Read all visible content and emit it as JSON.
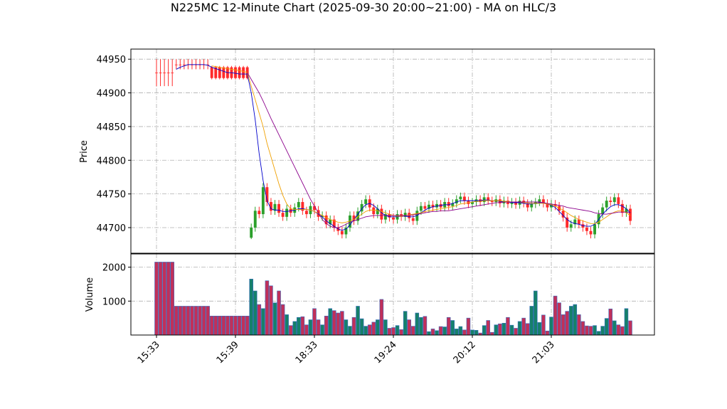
{
  "chart_data": {
    "type": "candlestick",
    "title": "N225MC 12-Minute Chart (2025-09-30 20:00~21:00) - MA on HLC/3",
    "ylabel": "Price",
    "volume_label": "Volume",
    "categories": [
      "15:33",
      null,
      null,
      null,
      null,
      null,
      null,
      null,
      null,
      null,
      null,
      null,
      null,
      null,
      null,
      null,
      null,
      null,
      null,
      null,
      "15:39",
      null,
      null,
      null,
      null,
      null,
      null,
      null,
      null,
      null,
      null,
      null,
      null,
      null,
      null,
      null,
      null,
      null,
      null,
      null,
      "18:33",
      null,
      null,
      null,
      null,
      null,
      null,
      null,
      null,
      null,
      null,
      null,
      null,
      null,
      null,
      null,
      null,
      null,
      null,
      null,
      "19:24",
      null,
      null,
      null,
      null,
      null,
      null,
      null,
      null,
      null,
      null,
      null,
      null,
      null,
      null,
      null,
      null,
      null,
      null,
      null,
      "20:12",
      null,
      null,
      null,
      null,
      null,
      null,
      null,
      null,
      null,
      null,
      null,
      null,
      null,
      null,
      null,
      null,
      null,
      null,
      null,
      "21:03",
      null,
      null,
      null,
      null,
      null,
      null,
      null,
      null,
      null,
      null,
      null,
      null,
      null,
      null,
      null,
      null,
      null,
      null,
      null,
      null
    ],
    "open": [
      44930,
      44930,
      44930,
      44930,
      44930,
      44942,
      44942,
      44942,
      44942,
      44942,
      44942,
      44942,
      44942,
      44942,
      44938,
      44938,
      44938,
      44938,
      44938,
      44938,
      44938,
      44938,
      44938,
      44938,
      44685,
      44700,
      44725,
      44720,
      44760,
      44738,
      44725,
      44735,
      44722,
      44716,
      44728,
      44722,
      44730,
      44738,
      44725,
      44720,
      44732,
      44726,
      44716,
      44718,
      44705,
      44712,
      44700,
      44695,
      44690,
      44700,
      44718,
      44710,
      44724,
      44735,
      44742,
      44730,
      44720,
      44728,
      44712,
      44720,
      44715,
      44712,
      44720,
      44716,
      44722,
      44714,
      44710,
      44725,
      44732,
      44728,
      44734,
      44730,
      44735,
      44730,
      44738,
      44732,
      44736,
      44742,
      44746,
      44740,
      44735,
      44738,
      44742,
      44738,
      44745,
      44740,
      44738,
      44742,
      44736,
      44740,
      44735,
      44738,
      44734,
      44740,
      44736,
      44730,
      44735,
      44738,
      44742,
      44736,
      44730,
      44735,
      44732,
      44725,
      44715,
      44700,
      44705,
      44712,
      44705,
      44700,
      44695,
      44690,
      44705,
      44720,
      44730,
      44740,
      44738,
      44745,
      44735,
      44722,
      44728
    ],
    "high": [
      44950,
      44950,
      44950,
      44950,
      44950,
      44950,
      44950,
      44950,
      44950,
      44950,
      44950,
      44950,
      44950,
      44950,
      44940,
      44940,
      44940,
      44940,
      44940,
      44940,
      44940,
      44940,
      44940,
      44940,
      44706,
      44731,
      44731,
      44766,
      44766,
      44744,
      44741,
      44741,
      44728,
      44734,
      44734,
      44736,
      44744,
      44744,
      44731,
      44738,
      44738,
      44732,
      44724,
      44724,
      44718,
      44718,
      44706,
      44701,
      44706,
      44724,
      44724,
      44730,
      44741,
      44748,
      44748,
      44736,
      44734,
      44734,
      44726,
      44726,
      44721,
      44726,
      44726,
      44728,
      44728,
      44720,
      44731,
      44738,
      44738,
      44740,
      44740,
      44741,
      44741,
      44744,
      44744,
      44742,
      44748,
      44752,
      44752,
      44746,
      44744,
      44748,
      44748,
      44751,
      44751,
      44746,
      44748,
      44748,
      44746,
      44746,
      44744,
      44744,
      44746,
      44746,
      44742,
      44741,
      44744,
      44748,
      44748,
      44742,
      44741,
      44741,
      44738,
      44731,
      44721,
      44711,
      44718,
      44718,
      44711,
      44706,
      44701,
      44711,
      44726,
      44736,
      44746,
      44746,
      44751,
      44751,
      44741,
      44734,
      44734
    ],
    "low": [
      44910,
      44910,
      44910,
      44910,
      44910,
      44935,
      44935,
      44935,
      44935,
      44935,
      44935,
      44935,
      44935,
      44935,
      44920,
      44920,
      44920,
      44920,
      44920,
      44920,
      44920,
      44920,
      44920,
      44920,
      44683,
      44694,
      44714,
      44714,
      44732,
      44719,
      44719,
      44716,
      44710,
      44710,
      44716,
      44716,
      44724,
      44719,
      44714,
      44714,
      44720,
      44710,
      44710,
      44699,
      44699,
      44694,
      44689,
      44684,
      44684,
      44694,
      44704,
      44704,
      44718,
      44729,
      44724,
      44714,
      44714,
      44706,
      44706,
      44709,
      44706,
      44706,
      44710,
      44710,
      44708,
      44704,
      44704,
      44719,
      44722,
      44722,
      44724,
      44724,
      44724,
      44724,
      44726,
      44726,
      44730,
      44736,
      44734,
      44729,
      44729,
      44732,
      44732,
      44732,
      44734,
      44732,
      44732,
      44730,
      44730,
      44729,
      44729,
      44728,
      44728,
      44730,
      44724,
      44724,
      44729,
      44732,
      44730,
      44724,
      44724,
      44726,
      44719,
      44709,
      44694,
      44694,
      44699,
      44699,
      44694,
      44689,
      44684,
      44684,
      44699,
      44714,
      44724,
      44732,
      44732,
      44729,
      44716,
      44716,
      44704
    ],
    "close": [
      44930,
      44930,
      44930,
      44930,
      44930,
      44942,
      44942,
      44942,
      44942,
      44942,
      44942,
      44942,
      44942,
      44942,
      44922,
      44922,
      44922,
      44922,
      44922,
      44922,
      44922,
      44922,
      44922,
      44922,
      44700,
      44725,
      44720,
      44760,
      44738,
      44725,
      44735,
      44722,
      44716,
      44728,
      44722,
      44730,
      44738,
      44725,
      44720,
      44732,
      44726,
      44716,
      44718,
      44705,
      44712,
      44700,
      44695,
      44690,
      44700,
      44718,
      44710,
      44724,
      44735,
      44742,
      44730,
      44720,
      44728,
      44712,
      44720,
      44715,
      44712,
      44720,
      44716,
      44722,
      44714,
      44710,
      44725,
      44732,
      44728,
      44734,
      44730,
      44735,
      44730,
      44738,
      44732,
      44736,
      44742,
      44746,
      44740,
      44735,
      44738,
      44742,
      44738,
      44745,
      44740,
      44738,
      44742,
      44736,
      44740,
      44735,
      44738,
      44734,
      44740,
      44736,
      44730,
      44735,
      44738,
      44742,
      44736,
      44730,
      44735,
      44732,
      44725,
      44715,
      44700,
      44705,
      44712,
      44705,
      44700,
      44695,
      44690,
      44705,
      44720,
      44730,
      44740,
      44738,
      44745,
      44735,
      44722,
      44728,
      44710
    ],
    "volume": [
      2150,
      2150,
      2150,
      2150,
      2150,
      850,
      850,
      850,
      850,
      850,
      850,
      850,
      850,
      850,
      560,
      560,
      560,
      560,
      560,
      560,
      560,
      560,
      560,
      560,
      1650,
      1300,
      900,
      780,
      1600,
      1450,
      950,
      1300,
      900,
      600,
      280,
      400,
      520,
      540,
      300,
      450,
      780,
      450,
      300,
      560,
      780,
      720,
      650,
      700,
      450,
      260,
      520,
      850,
      480,
      260,
      300,
      380,
      450,
      1050,
      450,
      200,
      220,
      280,
      160,
      700,
      450,
      260,
      650,
      520,
      550,
      100,
      180,
      130,
      250,
      240,
      520,
      430,
      180,
      250,
      150,
      500,
      150,
      140,
      60,
      280,
      430,
      80,
      300,
      330,
      350,
      520,
      290,
      200,
      400,
      500,
      340,
      850,
      1300,
      370,
      590,
      120,
      530,
      1150,
      950,
      600,
      700,
      850,
      900,
      600,
      400,
      270,
      260,
      280,
      110,
      260,
      490,
      770,
      420,
      300,
      250,
      780,
      420
    ],
    "series": [
      {
        "color": "#0000cc",
        "values": [
          null,
          null,
          null,
          null,
          null,
          44935,
          44938,
          44940,
          44942,
          44942,
          44942,
          44942,
          44942,
          44941,
          44938,
          44936,
          44934,
          44932,
          44930,
          44930,
          44929,
          44928,
          44928,
          44928,
          44900,
          44860,
          44810,
          44770,
          44740,
          44728,
          44726,
          44726,
          44724,
          44724,
          44725,
          44726,
          44728,
          44728,
          44727,
          44726,
          44724,
          44720,
          44716,
          44710,
          44706,
          44702,
          44698,
          44696,
          44698,
          44704,
          44712,
          44720,
          44728,
          44734,
          44736,
          44733,
          44728,
          44722,
          44718,
          44716,
          44716,
          44716,
          44717,
          44717,
          44716,
          44716,
          44718,
          44722,
          44726,
          44729,
          44731,
          44732,
          44733,
          44734,
          44734,
          44736,
          44738,
          44740,
          44740,
          44740,
          44740,
          44740,
          44740,
          44741,
          44741,
          44740,
          44740,
          44739,
          44738,
          44738,
          44737,
          44737,
          44737,
          44736,
          44735,
          44735,
          44736,
          44737,
          44737,
          44735,
          44733,
          44730,
          44724,
          44718,
          44712,
          44708,
          44706,
          44705,
          44703,
          44702,
          44702,
          44705,
          44712,
          44720,
          44726,
          44731,
          44734,
          44734,
          44732,
          44728,
          44722
        ]
      },
      {
        "color": "#f0a000",
        "values": [
          null,
          null,
          null,
          null,
          null,
          null,
          null,
          null,
          null,
          null,
          null,
          null,
          null,
          null,
          44940,
          44939,
          44938,
          44937,
          44936,
          44935,
          44934,
          44933,
          44932,
          44930,
          44910,
          44890,
          44870,
          44850,
          44825,
          44805,
          44785,
          44765,
          44748,
          44735,
          44728,
          44727,
          44727,
          44727,
          44727,
          44726,
          44724,
          44721,
          44718,
          44715,
          44712,
          44710,
          44708,
          44707,
          44708,
          44710,
          44712,
          44716,
          44720,
          44724,
          44726,
          44726,
          44725,
          44724,
          44722,
          44720,
          44718,
          44717,
          44717,
          44718,
          44719,
          44720,
          44721,
          44722,
          44724,
          44725,
          44726,
          44727,
          44728,
          44729,
          44730,
          44731,
          44733,
          44735,
          44736,
          44737,
          44738,
          44739,
          44739,
          44740,
          44740,
          44740,
          44740,
          44740,
          44739,
          44739,
          44738,
          44738,
          44738,
          44737,
          44737,
          44736,
          44736,
          44736,
          44736,
          44735,
          44734,
          44732,
          44729,
          44726,
          44722,
          44718,
          44715,
          44712,
          44710,
          44708,
          44706,
          44706,
          44708,
          44712,
          44716,
          44720,
          44723,
          44725,
          44725,
          44722,
          44718
        ]
      },
      {
        "color": "#8b008b",
        "values": [
          null,
          null,
          null,
          null,
          null,
          null,
          null,
          null,
          null,
          null,
          null,
          null,
          null,
          null,
          null,
          null,
          null,
          null,
          null,
          null,
          null,
          null,
          null,
          44930,
          44920,
          44910,
          44900,
          44888,
          44875,
          44862,
          44850,
          44838,
          44826,
          44814,
          44802,
          44790,
          44778,
          44766,
          44754,
          44742,
          44732,
          44722,
          44712,
          44706,
          44702,
          44700,
          44700,
          44702,
          44705,
          44708,
          44710,
          44712,
          44714,
          44716,
          44717,
          44718,
          44718,
          44718,
          44718,
          44718,
          44718,
          44718,
          44718,
          44718,
          44718,
          44719,
          44720,
          44721,
          44722,
          44723,
          44724,
          44724,
          44725,
          44725,
          44725,
          44726,
          44727,
          44728,
          44729,
          44730,
          44731,
          44732,
          44733,
          44734,
          44735,
          44736,
          44737,
          44737,
          44738,
          44738,
          44738,
          44738,
          44738,
          44738,
          44738,
          44738,
          44738,
          44738,
          44737,
          44736,
          44735,
          44734,
          44733,
          44732,
          44730,
          44729,
          44728,
          44727,
          44726,
          44725,
          44724,
          44722,
          44721,
          44720,
          44720,
          44721,
          44722,
          44723,
          44723,
          44723,
          44722
        ]
      }
    ],
    "up_color": "#2ca02c",
    "down_color": "#ff2a2a",
    "volume_up_color": "#16806a",
    "volume_down_color": "#c0305a",
    "volume_edge_color": "#3a6fc0",
    "ylim": [
      44662,
      44965
    ],
    "yticks": [
      44700,
      44750,
      44800,
      44850,
      44900,
      44950
    ],
    "volume_ylim": [
      0,
      2390
    ],
    "volume_yticks": [
      1000,
      2000
    ],
    "grid": true
  }
}
